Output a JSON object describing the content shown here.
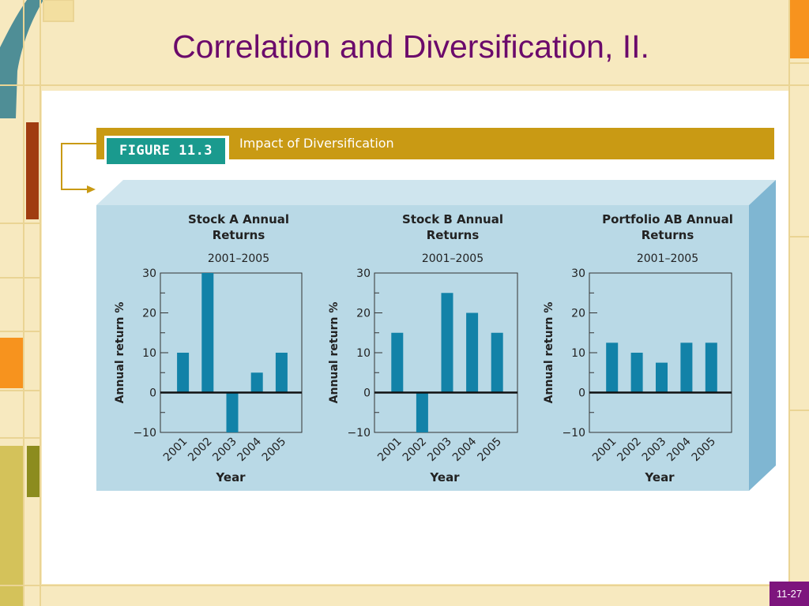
{
  "slide": {
    "title": "Correlation and Diversification, II.",
    "page_number": "11-27"
  },
  "figure": {
    "label": "FIGURE 11.3",
    "caption": "Impact of Diversification"
  },
  "colors": {
    "title": "#6b0a6b",
    "bar": "#1282a8",
    "panel": "#b9d9e6",
    "banner": "#c99a14",
    "figure_tag": "#1a9a8e"
  },
  "chart_data": [
    {
      "type": "bar",
      "title": "Stock A Annual Returns",
      "subtitle": "2001–2005",
      "xlabel": "Year",
      "ylabel": "Annual return %",
      "categories": [
        "2001",
        "2002",
        "2003",
        "2004",
        "2005"
      ],
      "values": [
        10,
        30,
        -10,
        5,
        10
      ],
      "ylim": [
        -10,
        30
      ],
      "yticks": [
        30,
        20,
        10,
        0,
        -10
      ],
      "ytick_labels": [
        "30",
        "20",
        "10",
        "0",
        "−10"
      ]
    },
    {
      "type": "bar",
      "title": "Stock B Annual Returns",
      "subtitle": "2001–2005",
      "xlabel": "Year",
      "ylabel": "Annual return %",
      "categories": [
        "2001",
        "2002",
        "2003",
        "2004",
        "2005"
      ],
      "values": [
        15,
        -10,
        25,
        20,
        15
      ],
      "ylim": [
        -10,
        30
      ],
      "yticks": [
        30,
        20,
        10,
        0,
        -10
      ],
      "ytick_labels": [
        "30",
        "20",
        "10",
        "0",
        "−10"
      ]
    },
    {
      "type": "bar",
      "title": "Portfolio AB Annual Returns",
      "subtitle": "2001–2005",
      "xlabel": "Year",
      "ylabel": "Annual return %",
      "categories": [
        "2001",
        "2002",
        "2003",
        "2004",
        "2005"
      ],
      "values": [
        12.5,
        10,
        7.5,
        12.5,
        12.5
      ],
      "ylim": [
        -10,
        30
      ],
      "yticks": [
        30,
        20,
        10,
        0,
        -10
      ],
      "ytick_labels": [
        "30",
        "20",
        "10",
        "0",
        "−10"
      ]
    }
  ]
}
